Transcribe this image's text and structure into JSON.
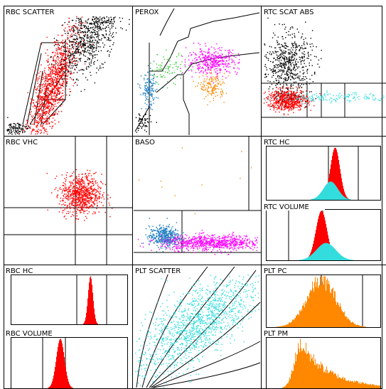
{
  "colors": {
    "black": "#000000",
    "red": "#ff0000",
    "green": "#33cc33",
    "magenta": "#ff00ff",
    "orange": "#ff8800",
    "blue": "#1f7fc0",
    "cyan": "#33dddd"
  },
  "chart_data": [
    {
      "id": "rbc-scatter",
      "type": "scatter",
      "title": "RBC SCATTER",
      "gates": "diagonal fan gate with box",
      "clusters": [
        {
          "color": "red",
          "cx": 0.37,
          "cy": 0.38,
          "n": 1200
        },
        {
          "color": "black",
          "cx": 0.68,
          "cy": 0.8,
          "n": 900
        },
        {
          "color": "black",
          "cx": 0.08,
          "cy": 0.05,
          "n": 120
        }
      ]
    },
    {
      "id": "perox",
      "type": "scatter",
      "title": "PEROX",
      "clusters": [
        {
          "color": "magenta",
          "cx": 0.62,
          "cy": 0.58,
          "n": 400
        },
        {
          "color": "orange",
          "cx": 0.62,
          "cy": 0.38,
          "n": 150
        },
        {
          "color": "green",
          "cx": 0.26,
          "cy": 0.52,
          "n": 80
        },
        {
          "color": "blue",
          "cx": 0.12,
          "cy": 0.35,
          "n": 150
        },
        {
          "color": "black",
          "cx": 0.07,
          "cy": 0.1,
          "n": 60
        }
      ]
    },
    {
      "id": "rtc-scat-abs",
      "type": "scatter",
      "title": "RTC SCAT ABS",
      "clusters": [
        {
          "color": "red",
          "cx": 0.2,
          "cy": 0.28,
          "n": 700
        },
        {
          "color": "black",
          "cx": 0.2,
          "cy": 0.56,
          "n": 600
        },
        {
          "color": "cyan",
          "cx": 0.55,
          "cy": 0.3,
          "n": 180
        }
      ]
    },
    {
      "id": "rbc-vhc",
      "type": "scatter",
      "title": "RBC VHC",
      "clusters": [
        {
          "color": "red",
          "cx": 0.6,
          "cy": 0.55,
          "n": 800
        }
      ]
    },
    {
      "id": "baso",
      "type": "scatter",
      "title": "BASO",
      "clusters": [
        {
          "color": "blue",
          "cx": 0.24,
          "cy": 0.22,
          "n": 450
        },
        {
          "color": "magenta",
          "cx": 0.62,
          "cy": 0.17,
          "n": 800
        },
        {
          "color": "orange",
          "cx": 0.5,
          "cy": 0.6,
          "n": 12
        }
      ]
    },
    {
      "id": "rtc-hc",
      "type": "area",
      "title": "RTC HC",
      "series": [
        {
          "color": "red",
          "peak": 0.6
        },
        {
          "color": "cyan",
          "peak": 0.56
        }
      ]
    },
    {
      "id": "rtc-volume",
      "type": "area",
      "title": "RTC VOLUME",
      "series": [
        {
          "color": "red",
          "peak": 0.48
        },
        {
          "color": "cyan",
          "peak": 0.52
        }
      ]
    },
    {
      "id": "plt-scatter",
      "type": "scatter",
      "title": "PLT SCATTER",
      "clusters": [
        {
          "color": "cyan",
          "cx": 0.5,
          "cy": 0.35,
          "n": 1400
        }
      ]
    },
    {
      "id": "rbc-hc",
      "type": "area",
      "title": "RBC HC",
      "series": [
        {
          "color": "red",
          "peak": 0.68
        }
      ]
    },
    {
      "id": "plt-pc",
      "type": "area",
      "title": "PLT PC",
      "series": [
        {
          "color": "orange",
          "peak": 0.48
        }
      ]
    },
    {
      "id": "rbc-volume",
      "type": "area",
      "title": "RBC VOLUME",
      "series": [
        {
          "color": "red",
          "peak": 0.42
        }
      ]
    },
    {
      "id": "plt-pm",
      "type": "area",
      "title": "PLT PM",
      "series": [
        {
          "color": "orange",
          "peak": 0.3
        }
      ]
    }
  ]
}
